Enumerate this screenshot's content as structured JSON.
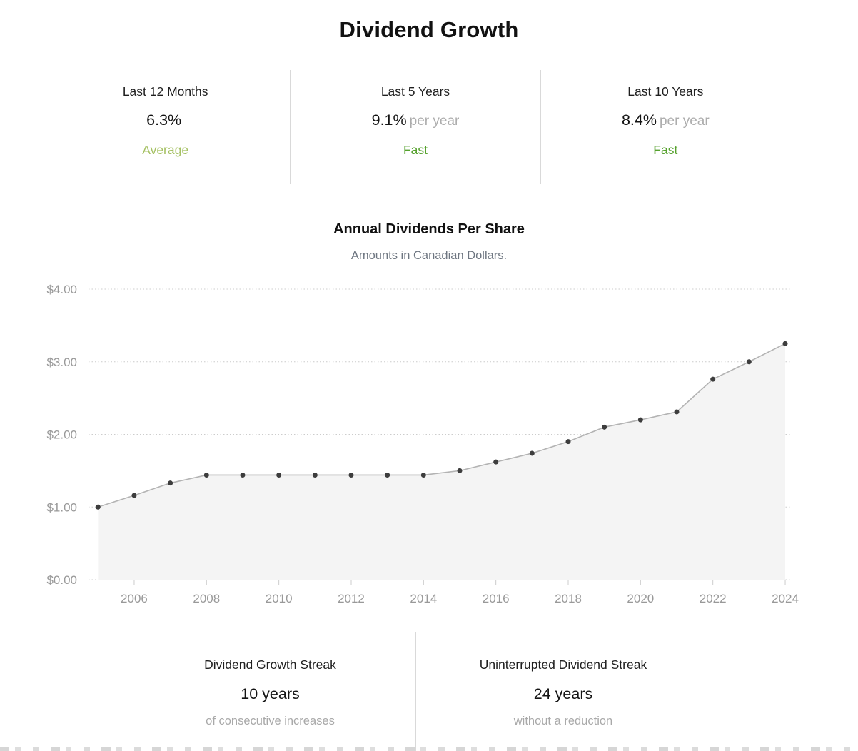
{
  "page_title": "Dividend Growth",
  "growth_stats": [
    {
      "period": "Last 12 Months",
      "value": "6.3%",
      "suffix": "",
      "rating": "Average",
      "rating_color": "#a5c163"
    },
    {
      "period": "Last 5 Years",
      "value": "9.1%",
      "suffix": "per year",
      "rating": "Fast",
      "rating_color": "#55a12d"
    },
    {
      "period": "Last 10 Years",
      "value": "8.4%",
      "suffix": "per year",
      "rating": "Fast",
      "rating_color": "#55a12d"
    }
  ],
  "chart_data": {
    "type": "area",
    "title": "Annual Dividends Per Share",
    "subtitle": "Amounts in Canadian Dollars.",
    "xlabel": "",
    "ylabel": "",
    "currency": "CAD",
    "x": [
      2005,
      2006,
      2007,
      2008,
      2009,
      2010,
      2011,
      2012,
      2013,
      2014,
      2015,
      2016,
      2017,
      2018,
      2019,
      2020,
      2021,
      2022,
      2023,
      2024
    ],
    "values": [
      1.0,
      1.16,
      1.33,
      1.44,
      1.44,
      1.44,
      1.44,
      1.44,
      1.44,
      1.44,
      1.5,
      1.62,
      1.74,
      1.9,
      2.1,
      2.2,
      2.31,
      2.76,
      3.0,
      3.25
    ],
    "ylim": [
      0,
      4
    ],
    "y_tick_labels": [
      "$0.00",
      "$1.00",
      "$2.00",
      "$3.00",
      "$4.00"
    ],
    "x_tick_years": [
      2006,
      2008,
      2010,
      2012,
      2014,
      2016,
      2018,
      2020,
      2022,
      2024
    ],
    "grid": true,
    "legend": "none",
    "colors": {
      "line": "#b3b3b3",
      "dot": "#3d3d3d",
      "fill": "#f4f4f4",
      "gridline": "#cccccc",
      "axis_label": "#999999"
    }
  },
  "streaks": [
    {
      "label": "Dividend Growth Streak",
      "value": "10 years",
      "sub": "of consecutive increases"
    },
    {
      "label": "Uninterrupted Dividend Streak",
      "value": "24 years",
      "sub": "without a reduction"
    }
  ]
}
